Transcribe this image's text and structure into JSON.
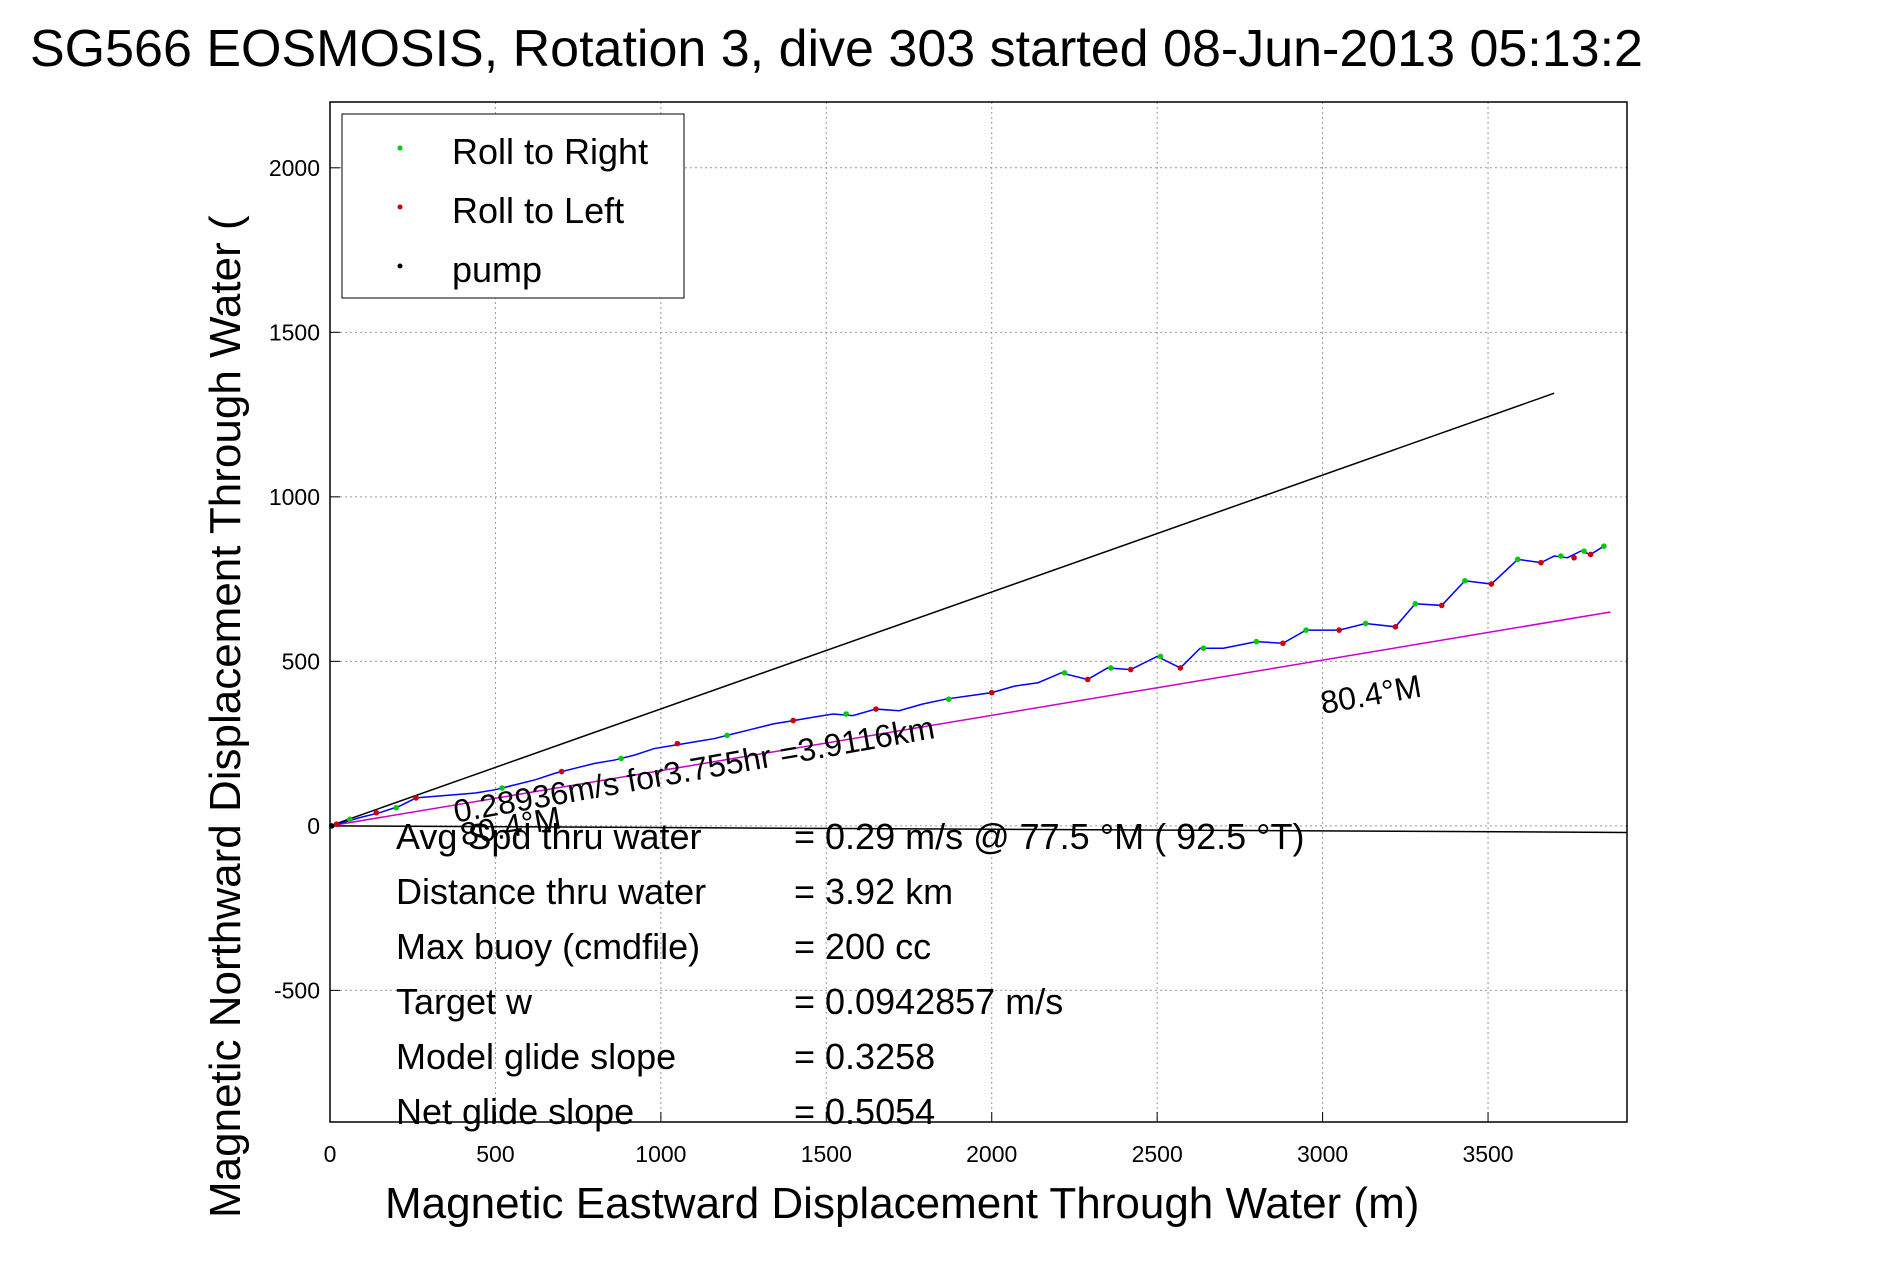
{
  "chart_data": {
    "type": "line",
    "title": "SG566 EOSMOSIS, Rotation 3, dive 303 started 08-Jun-2013 05:13:2",
    "xlabel": "Magnetic Eastward Displacement Through Water (m)",
    "ylabel": "Magnetic Northward Displacement Through Water (",
    "xlim": [
      0,
      3920
    ],
    "ylim": [
      -900,
      2200
    ],
    "xticks": [
      0,
      500,
      1000,
      1500,
      2000,
      2500,
      3000,
      3500
    ],
    "yticks": [
      -500,
      0,
      500,
      1000,
      1500,
      2000
    ],
    "grid": true,
    "legend": {
      "position": "top-left",
      "entries": [
        {
          "label": "Roll to Right",
          "color": "#00cc00"
        },
        {
          "label": "Roll to Left",
          "color": "#cc0000"
        },
        {
          "label": "pump",
          "color": "#000000"
        }
      ]
    },
    "series": [
      {
        "name": "track",
        "color": "#0000ff",
        "x": [
          0,
          40,
          90,
          150,
          210,
          260,
          320,
          380,
          440,
          500,
          560,
          620,
          680,
          740,
          800,
          860,
          920,
          980,
          1040,
          1100,
          1160,
          1220,
          1280,
          1340,
          1400,
          1460,
          1520,
          1580,
          1650,
          1720,
          1790,
          1860,
          1930,
          2000,
          2070,
          2140,
          2210,
          2290,
          2350,
          2420,
          2500,
          2570,
          2630,
          2700,
          2800,
          2880,
          2950,
          3050,
          3130,
          3220,
          3280,
          3360,
          3430,
          3510,
          3590,
          3660,
          3700,
          3740,
          3780,
          3810,
          3850
        ],
        "y": [
          0,
          10,
          25,
          40,
          60,
          85,
          90,
          95,
          100,
          110,
          125,
          140,
          160,
          175,
          190,
          200,
          215,
          235,
          245,
          255,
          265,
          280,
          295,
          310,
          320,
          330,
          340,
          335,
          355,
          350,
          370,
          385,
          395,
          405,
          425,
          435,
          465,
          445,
          480,
          475,
          515,
          480,
          540,
          540,
          560,
          555,
          595,
          595,
          615,
          605,
          675,
          670,
          745,
          735,
          810,
          800,
          820,
          815,
          835,
          825,
          850
        ]
      },
      {
        "name": "roll-right",
        "color": "#00cc00",
        "x": [
          60,
          200,
          520,
          880,
          1200,
          1560,
          1870,
          2220,
          2360,
          2510,
          2640,
          2800,
          2950,
          3130,
          3280,
          3430,
          3590,
          3720,
          3790,
          3850
        ],
        "y": [
          20,
          55,
          115,
          205,
          275,
          340,
          385,
          465,
          480,
          515,
          540,
          560,
          595,
          615,
          675,
          745,
          810,
          820,
          835,
          850
        ]
      },
      {
        "name": "roll-left",
        "color": "#cc0000",
        "x": [
          20,
          140,
          260,
          700,
          1050,
          1400,
          1650,
          2000,
          2290,
          2420,
          2570,
          2880,
          3050,
          3220,
          3360,
          3510,
          3660,
          3760,
          3810
        ],
        "y": [
          5,
          40,
          85,
          165,
          250,
          320,
          355,
          405,
          445,
          475,
          480,
          555,
          595,
          605,
          670,
          735,
          800,
          815,
          825
        ]
      },
      {
        "name": "pump",
        "color": "#000000",
        "x": [
          5
        ],
        "y": [
          0
        ]
      }
    ],
    "reference_lines": [
      {
        "name": "heading-line",
        "color": "#000000",
        "x": [
          0,
          3700
        ],
        "y": [
          0,
          1315
        ]
      },
      {
        "name": "surface-line",
        "color": "#cc00cc",
        "x": [
          0,
          3870
        ],
        "y": [
          0,
          650
        ]
      },
      {
        "name": "current-line",
        "color": "#000000",
        "x": [
          0,
          3920
        ],
        "y": [
          0,
          -20
        ]
      }
    ],
    "annotations": [
      {
        "text": "0.28936m/s for3.755hr =3.9116km",
        "x": 380,
        "y": 10,
        "angle": -10
      },
      {
        "text": "80.4°M",
        "x": 3000,
        "y": 340,
        "angle": -10
      },
      {
        "text": "80.4°M",
        "x": 400,
        "y": -60,
        "angle": -10
      }
    ],
    "stats": [
      {
        "label": "Avg Spd thru water",
        "value": "=  0.29 m/s @  77.5 °M ( 92.5 °T)"
      },
      {
        "label": "Distance thru water",
        "value": "=  3.92 km"
      },
      {
        "label": "Max buoy (cmdfile)",
        "value": "= 200 cc"
      },
      {
        "label": "Target w",
        "value": "= 0.0942857 m/s"
      },
      {
        "label": "Model glide slope",
        "value": "= 0.3258"
      },
      {
        "label": "Net glide slope",
        "value": "= 0.5054"
      }
    ]
  }
}
